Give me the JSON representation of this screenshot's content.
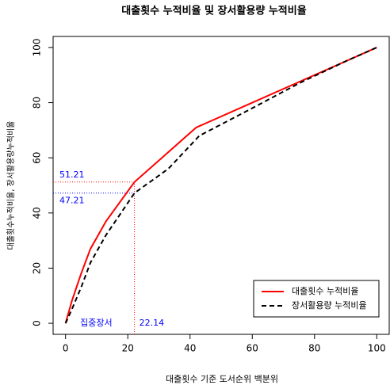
{
  "chart_data": {
    "type": "line",
    "title": "대출횟수 누적비율 및 장서활용량 누적비율",
    "x_label": "대출횟수 기준 도서순위 백분위",
    "y_label": "대출횟수누적비율, 장서활용량누적비율",
    "xlim": [
      -4,
      104
    ],
    "ylim": [
      -4,
      104
    ],
    "xticks": [
      0,
      20,
      40,
      60,
      80,
      100
    ],
    "yticks": [
      0,
      20,
      40,
      60,
      80,
      100
    ],
    "series": [
      {
        "name": "대출횟수 누적비율",
        "color": "#ff0000",
        "dash": false,
        "x": [
          0,
          2,
          5,
          8,
          13,
          22.14,
          42,
          60,
          80,
          100
        ],
        "values": [
          0,
          8,
          18,
          27,
          37,
          51.21,
          71,
          80,
          90,
          100
        ]
      },
      {
        "name": "장서활용량 누적비율",
        "color": "#000000",
        "dash": true,
        "x": [
          0,
          2,
          5,
          8,
          13,
          22.14,
          33,
          43,
          60,
          75,
          90,
          100
        ],
        "values": [
          0,
          5,
          13,
          22,
          32,
          47.21,
          56,
          68,
          78,
          87,
          95,
          100
        ]
      }
    ],
    "ref_x": 22.14,
    "ref_y": [
      {
        "value": 51.21,
        "color": "#ff0000"
      },
      {
        "value": 47.21,
        "color": "#0000ff"
      }
    ],
    "annotation": "집중장서",
    "legend": "bottom-right"
  }
}
